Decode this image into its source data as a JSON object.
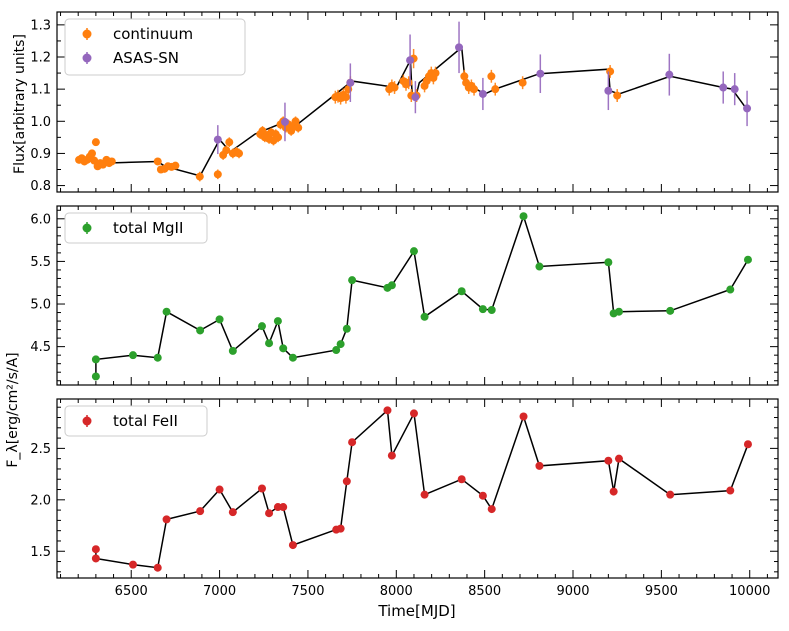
{
  "figure": {
    "xlabel": "Time[MJD]"
  },
  "chart_data": [
    {
      "type": "scatter",
      "ylabel": "Flux[arbitrary units]",
      "xlim": [
        6080,
        10160
      ],
      "ylim": [
        0.78,
        1.34
      ],
      "yticks": [
        0.8,
        0.9,
        1.0,
        1.1,
        1.2,
        1.3
      ],
      "ytick_labels": [
        "0.8",
        "0.9",
        "1.0",
        "1.1",
        "1.2",
        "1.3"
      ],
      "legend_position": "upper-left",
      "connecting_line": {
        "color": "#000000",
        "points": [
          [
            6300,
            0.88
          ],
          [
            6350,
            0.87
          ],
          [
            6650,
            0.875
          ],
          [
            6690,
            0.86
          ],
          [
            6890,
            0.83
          ],
          [
            7000,
            0.943
          ],
          [
            7060,
            0.905
          ],
          [
            7200,
            0.96
          ],
          [
            7370,
            0.998
          ],
          [
            7440,
            0.99
          ],
          [
            7750,
            1.125
          ],
          [
            8000,
            1.105
          ],
          [
            8080,
            1.19
          ],
          [
            8090,
            1.08
          ],
          [
            8110,
            1.075
          ],
          [
            8130,
            1.12
          ],
          [
            8370,
            1.23
          ],
          [
            8390,
            1.12
          ],
          [
            8500,
            1.085
          ],
          [
            8560,
            1.1
          ],
          [
            8810,
            1.148
          ],
          [
            9200,
            1.162
          ],
          [
            9210,
            1.095
          ],
          [
            9260,
            1.085
          ],
          [
            9550,
            1.14
          ],
          [
            9850,
            1.105
          ],
          [
            9900,
            1.1
          ],
          [
            9980,
            1.04
          ]
        ]
      },
      "series": [
        {
          "name": "continuum",
          "color": "#ff7f0e",
          "points": [
            [
              6205,
              0.88,
              0.01
            ],
            [
              6220,
              0.885,
              0.01
            ],
            [
              6235,
              0.875,
              0.01
            ],
            [
              6250,
              0.88,
              0.01
            ],
            [
              6265,
              0.89,
              0.01
            ],
            [
              6278,
              0.9,
              0.01
            ],
            [
              6290,
              0.878,
              0.01
            ],
            [
              6300,
              0.935,
              0.01
            ],
            [
              6310,
              0.86,
              0.01
            ],
            [
              6325,
              0.87,
              0.01
            ],
            [
              6340,
              0.865,
              0.01
            ],
            [
              6360,
              0.88,
              0.01
            ],
            [
              6375,
              0.87,
              0.01
            ],
            [
              6390,
              0.875,
              0.01
            ],
            [
              6650,
              0.875,
              0.01
            ],
            [
              6668,
              0.85,
              0.01
            ],
            [
              6688,
              0.852,
              0.01
            ],
            [
              6708,
              0.86,
              0.01
            ],
            [
              6728,
              0.858,
              0.01
            ],
            [
              6750,
              0.862,
              0.01
            ],
            [
              6888,
              0.828,
              0.015
            ],
            [
              6990,
              0.835,
              0.015
            ],
            [
              7020,
              0.895,
              0.015
            ],
            [
              7038,
              0.91,
              0.015
            ],
            [
              7055,
              0.935,
              0.015
            ],
            [
              7075,
              0.9,
              0.015
            ],
            [
              7095,
              0.905,
              0.015
            ],
            [
              7110,
              0.9,
              0.015
            ],
            [
              7230,
              0.96,
              0.015
            ],
            [
              7243,
              0.97,
              0.015
            ],
            [
              7256,
              0.95,
              0.015
            ],
            [
              7268,
              0.955,
              0.015
            ],
            [
              7280,
              0.945,
              0.015
            ],
            [
              7292,
              0.965,
              0.015
            ],
            [
              7305,
              0.94,
              0.015
            ],
            [
              7318,
              0.96,
              0.015
            ],
            [
              7331,
              0.95,
              0.015
            ],
            [
              7345,
              0.99,
              0.015
            ],
            [
              7360,
              1.0,
              0.015
            ],
            [
              7375,
              0.98,
              0.015
            ],
            [
              7390,
              0.99,
              0.015
            ],
            [
              7405,
              0.97,
              0.015
            ],
            [
              7418,
              0.985,
              0.015
            ],
            [
              7430,
              1.0,
              0.015
            ],
            [
              7445,
              0.98,
              0.015
            ],
            [
              7655,
              1.075,
              0.02
            ],
            [
              7670,
              1.078,
              0.02
            ],
            [
              7685,
              1.072,
              0.02
            ],
            [
              7700,
              1.082,
              0.02
            ],
            [
              7715,
              1.075,
              0.02
            ],
            [
              7728,
              1.1,
              0.02
            ],
            [
              7740,
              1.12,
              0.02
            ],
            [
              7960,
              1.1,
              0.02
            ],
            [
              7975,
              1.11,
              0.02
            ],
            [
              7990,
              1.105,
              0.02
            ],
            [
              8040,
              1.125,
              0.02
            ],
            [
              8055,
              1.115,
              0.02
            ],
            [
              8070,
              1.12,
              0.02
            ],
            [
              8085,
              1.08,
              0.02
            ],
            [
              8098,
              1.195,
              0.03
            ],
            [
              8115,
              1.08,
              0.02
            ],
            [
              8160,
              1.11,
              0.02
            ],
            [
              8172,
              1.125,
              0.02
            ],
            [
              8185,
              1.14,
              0.02
            ],
            [
              8198,
              1.15,
              0.02
            ],
            [
              8210,
              1.135,
              0.02
            ],
            [
              8222,
              1.15,
              0.02
            ],
            [
              8385,
              1.14,
              0.02
            ],
            [
              8395,
              1.12,
              0.02
            ],
            [
              8410,
              1.105,
              0.02
            ],
            [
              8425,
              1.11,
              0.02
            ],
            [
              8440,
              1.1,
              0.02
            ],
            [
              8538,
              1.14,
              0.02
            ],
            [
              8560,
              1.1,
              0.02
            ],
            [
              8715,
              1.12,
              0.02
            ],
            [
              9210,
              1.155,
              0.02
            ],
            [
              9250,
              1.08,
              0.02
            ]
          ]
        },
        {
          "name": "ASAS-SN",
          "color": "#9467bd",
          "points": [
            [
              6990,
              0.943,
              0.045
            ],
            [
              7370,
              0.998,
              0.06
            ],
            [
              7740,
              1.12,
              0.06
            ],
            [
              8078,
              1.19,
              0.08
            ],
            [
              8108,
              1.075,
              0.05
            ],
            [
              8355,
              1.23,
              0.08
            ],
            [
              8490,
              1.085,
              0.05
            ],
            [
              8815,
              1.148,
              0.06
            ],
            [
              9200,
              1.095,
              0.06
            ],
            [
              9545,
              1.145,
              0.065
            ],
            [
              9850,
              1.105,
              0.05
            ],
            [
              9915,
              1.1,
              0.05
            ],
            [
              9985,
              1.04,
              0.055
            ]
          ]
        }
      ]
    },
    {
      "type": "line",
      "ylabel": "",
      "xlim": [
        6080,
        10160
      ],
      "ylim": [
        4.05,
        6.15
      ],
      "yticks": [
        4.5,
        5.0,
        5.5,
        6.0
      ],
      "ytick_labels": [
        "4.5",
        "5.0",
        "5.5",
        "6.0"
      ],
      "legend_position": "upper-left",
      "series": [
        {
          "name": "total MgII",
          "color": "#2ca02c",
          "points": [
            [
              6300,
              4.15
            ],
            [
              6300,
              4.35
            ],
            [
              6510,
              4.4
            ],
            [
              6650,
              4.37
            ],
            [
              6700,
              4.91
            ],
            [
              6890,
              4.69
            ],
            [
              7000,
              4.82
            ],
            [
              7075,
              4.45
            ],
            [
              7240,
              4.74
            ],
            [
              7280,
              4.54
            ],
            [
              7330,
              4.8
            ],
            [
              7360,
              4.48
            ],
            [
              7415,
              4.37
            ],
            [
              7660,
              4.46
            ],
            [
              7685,
              4.53
            ],
            [
              7720,
              4.71
            ],
            [
              7750,
              5.28
            ],
            [
              7950,
              5.19
            ],
            [
              7975,
              5.22
            ],
            [
              8100,
              5.62
            ],
            [
              8160,
              4.85
            ],
            [
              8370,
              5.15
            ],
            [
              8490,
              4.94
            ],
            [
              8540,
              4.93
            ],
            [
              8720,
              6.03
            ],
            [
              8810,
              5.44
            ],
            [
              9200,
              5.49
            ],
            [
              9230,
              4.89
            ],
            [
              9260,
              4.91
            ],
            [
              9550,
              4.92
            ],
            [
              9890,
              5.17
            ],
            [
              9990,
              5.52
            ]
          ]
        }
      ]
    },
    {
      "type": "line",
      "ylabel": "F_λ[erg/cm²/s/A]",
      "xlim": [
        6080,
        10160
      ],
      "ylim": [
        1.24,
        2.98
      ],
      "yticks": [
        1.5,
        2.0,
        2.5
      ],
      "ytick_labels": [
        "1.5",
        "2.0",
        "2.5"
      ],
      "legend_position": "upper-left",
      "series": [
        {
          "name": "total FeII",
          "color": "#d62728",
          "points": [
            [
              6300,
              1.52
            ],
            [
              6300,
              1.43
            ],
            [
              6510,
              1.37
            ],
            [
              6650,
              1.34
            ],
            [
              6700,
              1.81
            ],
            [
              6890,
              1.89
            ],
            [
              7000,
              2.1
            ],
            [
              7075,
              1.88
            ],
            [
              7240,
              2.11
            ],
            [
              7280,
              1.87
            ],
            [
              7330,
              1.93
            ],
            [
              7360,
              1.93
            ],
            [
              7415,
              1.56
            ],
            [
              7660,
              1.71
            ],
            [
              7685,
              1.72
            ],
            [
              7720,
              2.18
            ],
            [
              7750,
              2.56
            ],
            [
              7950,
              2.87
            ],
            [
              7975,
              2.43
            ],
            [
              8100,
              2.84
            ],
            [
              8160,
              2.05
            ],
            [
              8370,
              2.2
            ],
            [
              8490,
              2.04
            ],
            [
              8540,
              1.91
            ],
            [
              8720,
              2.81
            ],
            [
              8810,
              2.33
            ],
            [
              9200,
              2.38
            ],
            [
              9230,
              2.08
            ],
            [
              9260,
              2.4
            ],
            [
              9550,
              2.05
            ],
            [
              9890,
              2.09
            ],
            [
              9990,
              2.54
            ]
          ]
        }
      ]
    }
  ],
  "xaxis": {
    "ticks": [
      6500,
      7000,
      7500,
      8000,
      8500,
      9000,
      9500,
      10000
    ],
    "tick_labels": [
      "6500",
      "7000",
      "7500",
      "8000",
      "8500",
      "9000",
      "9500",
      "10000"
    ]
  }
}
